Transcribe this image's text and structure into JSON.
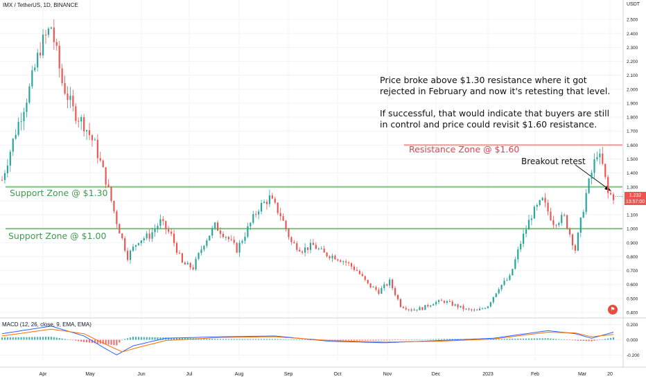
{
  "header": {
    "title": "IMX / TetherUS, 1D, BINANCE",
    "currency": "USDT"
  },
  "last_price": {
    "value": "1.232",
    "countdown": "13:57:00"
  },
  "macd_label": "MACD (12, 26, close, 9, EMA, EMA)",
  "annotations": {
    "note_line1": "Price broke above $1.30 resistance where it got rejected in February and now it's retesting that level.",
    "note_line2": "If successful, that would indicate that buyers are still in control and price could revisit $1.60 resistance.",
    "resistance_label": "Resistance Zone @ $1.60",
    "support_high_label": "Support Zone @ $1.30",
    "support_low_label": "Support Zone @ $1.00",
    "breakout_label": "Breakout retest"
  },
  "colors": {
    "up": "#26a69a",
    "down": "#ef5350",
    "support": "#81c784",
    "resistance": "#ef9a9a",
    "macd": "#2962ff",
    "signal": "#ff6d00"
  },
  "chart_data": {
    "type": "candlestick",
    "symbol": "IMX / TetherUS",
    "timeframe": "1D",
    "exchange": "BINANCE",
    "currency": "USDT",
    "x_tick_labels": [
      "Apr",
      "May",
      "Jun",
      "Jul",
      "Aug",
      "Sep",
      "Oct",
      "Nov",
      "Dec",
      "2023",
      "Feb",
      "Mar",
      "20"
    ],
    "price_ticks": [
      0.4,
      0.5,
      0.6,
      0.7,
      0.8,
      0.9,
      1.0,
      1.1,
      1.2,
      1.3,
      1.4,
      1.5,
      1.6,
      1.7,
      1.8,
      1.9,
      2.0,
      2.1,
      2.2,
      2.3,
      2.4,
      2.5
    ],
    "price_range": [
      0.38,
      2.6
    ],
    "macd_ticks": [
      0.2,
      0.0,
      -0.2
    ],
    "macd_range": [
      -0.27,
      0.26
    ],
    "close_path": [
      [
        0,
        1.35
      ],
      [
        5,
        1.7
      ],
      [
        10,
        2.0
      ],
      [
        14,
        2.3
      ],
      [
        18,
        2.45
      ],
      [
        22,
        2.05
      ],
      [
        26,
        1.85
      ],
      [
        30,
        1.75
      ],
      [
        34,
        1.6
      ],
      [
        38,
        1.35
      ],
      [
        42,
        1.05
      ],
      [
        46,
        0.8
      ],
      [
        50,
        0.92
      ],
      [
        54,
        0.95
      ],
      [
        58,
        1.05
      ],
      [
        62,
        0.95
      ],
      [
        66,
        0.75
      ],
      [
        70,
        0.72
      ],
      [
        74,
        0.9
      ],
      [
        78,
        1.02
      ],
      [
        82,
        0.95
      ],
      [
        86,
        0.85
      ],
      [
        90,
        1.0
      ],
      [
        94,
        1.15
      ],
      [
        98,
        1.22
      ],
      [
        102,
        1.1
      ],
      [
        106,
        0.9
      ],
      [
        110,
        0.85
      ],
      [
        114,
        0.88
      ],
      [
        118,
        0.82
      ],
      [
        122,
        0.8
      ],
      [
        126,
        0.76
      ],
      [
        130,
        0.7
      ],
      [
        134,
        0.6
      ],
      [
        138,
        0.55
      ],
      [
        142,
        0.62
      ],
      [
        146,
        0.45
      ],
      [
        150,
        0.42
      ],
      [
        154,
        0.43
      ],
      [
        158,
        0.47
      ],
      [
        162,
        0.48
      ],
      [
        166,
        0.45
      ],
      [
        170,
        0.42
      ],
      [
        174,
        0.41
      ],
      [
        178,
        0.45
      ],
      [
        182,
        0.58
      ],
      [
        186,
        0.65
      ],
      [
        190,
        0.9
      ],
      [
        194,
        1.1
      ],
      [
        198,
        1.2
      ],
      [
        202,
        1.05
      ],
      [
        206,
        1.08
      ],
      [
        210,
        0.85
      ],
      [
        214,
        1.25
      ],
      [
        218,
        1.55
      ],
      [
        220,
        1.45
      ],
      [
        222,
        1.25
      ],
      [
        224,
        1.232
      ]
    ],
    "last_price": 1.232,
    "horizontal_levels": [
      {
        "label": "Resistance Zone @ $1.60",
        "price": 1.6
      },
      {
        "label": "Support Zone @ $1.30",
        "price": 1.3
      },
      {
        "label": "Support Zone @ $1.00",
        "price": 1.0
      }
    ],
    "macd_series": [
      {
        "name": "MACD",
        "path": [
          [
            0,
            0.08
          ],
          [
            18,
            0.18
          ],
          [
            30,
            0.05
          ],
          [
            38,
            -0.12
          ],
          [
            42,
            -0.2
          ],
          [
            48,
            -0.08
          ],
          [
            60,
            0.02
          ],
          [
            80,
            0.04
          ],
          [
            100,
            0.05
          ],
          [
            120,
            -0.02
          ],
          [
            140,
            -0.04
          ],
          [
            160,
            -0.01
          ],
          [
            180,
            0.02
          ],
          [
            200,
            0.12
          ],
          [
            210,
            0.08
          ],
          [
            216,
            0.02
          ],
          [
            224,
            0.1
          ]
        ]
      },
      {
        "name": "Signal",
        "path": [
          [
            0,
            0.05
          ],
          [
            18,
            0.14
          ],
          [
            30,
            0.08
          ],
          [
            38,
            -0.06
          ],
          [
            44,
            -0.16
          ],
          [
            50,
            -0.1
          ],
          [
            60,
            -0.01
          ],
          [
            80,
            0.03
          ],
          [
            100,
            0.04
          ],
          [
            120,
            -0.01
          ],
          [
            140,
            -0.03
          ],
          [
            160,
            -0.02
          ],
          [
            180,
            0.01
          ],
          [
            200,
            0.1
          ],
          [
            210,
            0.09
          ],
          [
            216,
            0.04
          ],
          [
            224,
            0.07
          ]
        ]
      }
    ]
  }
}
